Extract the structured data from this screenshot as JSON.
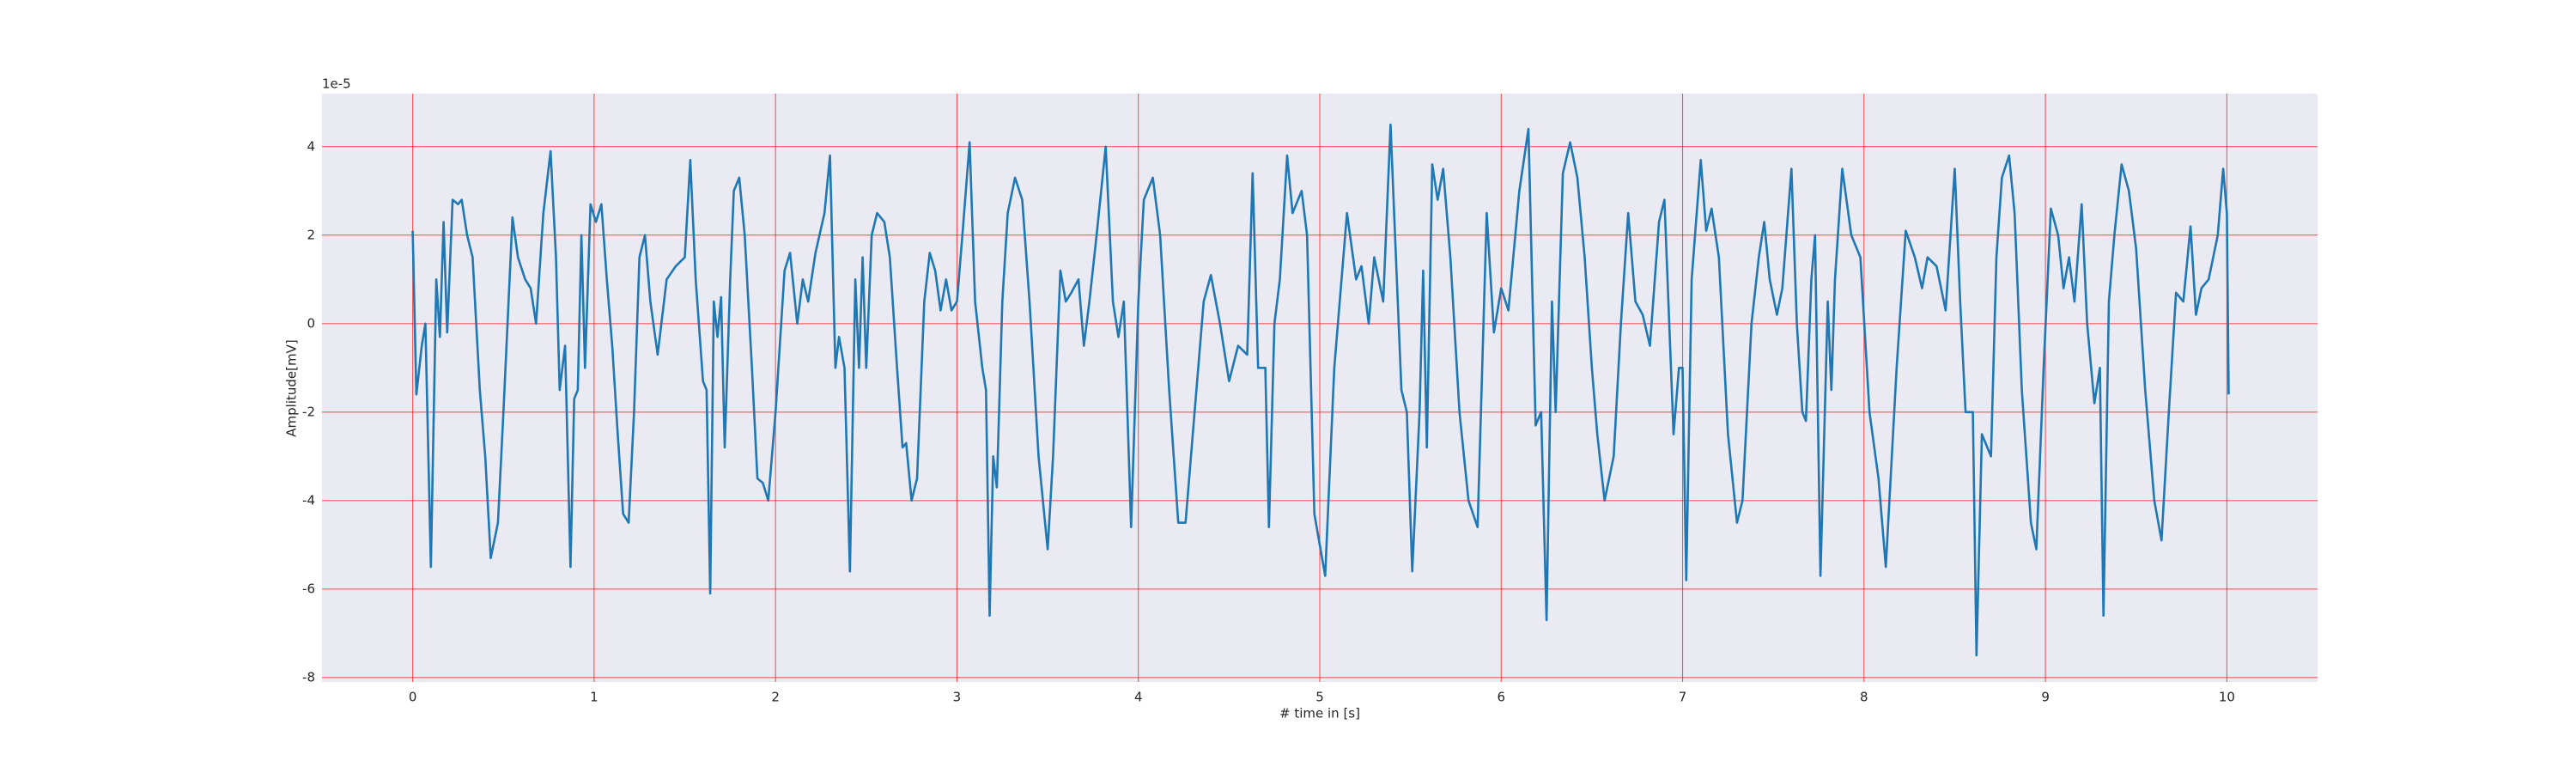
{
  "chart_data": {
    "type": "line",
    "xlabel": "# time in [s]",
    "ylabel": "Amplitude[mV]",
    "offset_text": "1e-5",
    "x": [
      0,
      0.02,
      0.05,
      0.07,
      0.1,
      0.13,
      0.15,
      0.17,
      0.19,
      0.22,
      0.25,
      0.27,
      0.3,
      0.33,
      0.37,
      0.4,
      0.43,
      0.47,
      0.5,
      0.55,
      0.58,
      0.62,
      0.65,
      0.68,
      0.72,
      0.76,
      0.79,
      0.81,
      0.84,
      0.87,
      0.89,
      0.91,
      0.93,
      0.95,
      0.98,
      1.01,
      1.04,
      1.07,
      1.1,
      1.13,
      1.16,
      1.19,
      1.22,
      1.25,
      1.28,
      1.31,
      1.35,
      1.4,
      1.45,
      1.5,
      1.53,
      1.56,
      1.6,
      1.62,
      1.64,
      1.66,
      1.68,
      1.7,
      1.72,
      1.75,
      1.77,
      1.8,
      1.83,
      1.87,
      1.9,
      1.93,
      1.96,
      2.0,
      2.05,
      2.08,
      2.12,
      2.15,
      2.18,
      2.22,
      2.27,
      2.3,
      2.33,
      2.35,
      2.38,
      2.41,
      2.44,
      2.46,
      2.48,
      2.5,
      2.53,
      2.56,
      2.6,
      2.63,
      2.67,
      2.7,
      2.72,
      2.75,
      2.78,
      2.82,
      2.85,
      2.88,
      2.91,
      2.94,
      2.97,
      3.0,
      3.03,
      3.07,
      3.1,
      3.14,
      3.16,
      3.18,
      3.2,
      3.22,
      3.25,
      3.28,
      3.32,
      3.36,
      3.4,
      3.45,
      3.5,
      3.53,
      3.57,
      3.6,
      3.63,
      3.67,
      3.7,
      3.73,
      3.77,
      3.82,
      3.86,
      3.89,
      3.92,
      3.96,
      4.0,
      4.03,
      4.08,
      4.12,
      4.17,
      4.22,
      4.26,
      4.3,
      4.36,
      4.4,
      4.45,
      4.5,
      4.55,
      4.6,
      4.63,
      4.66,
      4.7,
      4.72,
      4.75,
      4.78,
      4.82,
      4.85,
      4.9,
      4.93,
      4.97,
      5.0,
      5.03,
      5.08,
      5.15,
      5.2,
      5.23,
      5.27,
      5.3,
      5.35,
      5.39,
      5.42,
      5.45,
      5.48,
      5.51,
      5.55,
      5.57,
      5.59,
      5.62,
      5.65,
      5.68,
      5.72,
      5.77,
      5.82,
      5.87,
      5.92,
      5.96,
      6.0,
      6.04,
      6.1,
      6.15,
      6.19,
      6.22,
      6.25,
      6.28,
      6.3,
      6.34,
      6.38,
      6.42,
      6.46,
      6.5,
      6.53,
      6.57,
      6.62,
      6.66,
      6.7,
      6.74,
      6.78,
      6.82,
      6.87,
      6.9,
      6.95,
      6.98,
      7.0,
      7.02,
      7.05,
      7.1,
      7.13,
      7.16,
      7.2,
      7.25,
      7.3,
      7.33,
      7.38,
      7.42,
      7.45,
      7.48,
      7.52,
      7.55,
      7.6,
      7.63,
      7.66,
      7.68,
      7.71,
      7.73,
      7.76,
      7.8,
      7.82,
      7.84,
      7.88,
      7.93,
      7.98,
      8.03,
      8.08,
      8.12,
      8.18,
      8.23,
      8.28,
      8.32,
      8.35,
      8.4,
      8.45,
      8.5,
      8.53,
      8.56,
      8.6,
      8.62,
      8.65,
      8.7,
      8.73,
      8.76,
      8.8,
      8.83,
      8.87,
      8.92,
      8.95,
      8.99,
      9.03,
      9.07,
      9.1,
      9.13,
      9.16,
      9.2,
      9.23,
      9.27,
      9.3,
      9.32,
      9.35,
      9.38,
      9.42,
      9.46,
      9.5,
      9.55,
      9.6,
      9.64,
      9.68,
      9.72,
      9.76,
      9.8,
      9.83,
      9.86,
      9.9,
      9.95,
      9.98,
      10.0,
      10.01
    ],
    "values": [
      2.1,
      -1.6,
      -0.5,
      0.0,
      -5.5,
      1.0,
      -0.3,
      2.3,
      -0.2,
      2.8,
      2.7,
      2.8,
      2.0,
      1.5,
      -1.5,
      -3.0,
      -5.3,
      -4.5,
      -2.0,
      2.4,
      1.5,
      1.0,
      0.8,
      0,
      2.5,
      3.9,
      1.5,
      -1.5,
      -0.5,
      -5.5,
      -1.7,
      -1.5,
      2.0,
      -1.0,
      2.7,
      2.3,
      2.7,
      1.0,
      -0.5,
      -2.5,
      -4.3,
      -4.5,
      -2.0,
      1.5,
      2.0,
      0.5,
      -0.7,
      1.0,
      1.3,
      1.5,
      3.7,
      1.0,
      -1.3,
      -1.5,
      -6.1,
      0.5,
      -0.3,
      0.6,
      -2.8,
      1.0,
      3.0,
      3.3,
      2.0,
      -1.0,
      -3.5,
      -3.6,
      -4.0,
      -2.0,
      1.2,
      1.6,
      0,
      1.0,
      0.5,
      1.6,
      2.5,
      3.8,
      -1.0,
      -0.3,
      -1.0,
      -5.6,
      1.0,
      -1.0,
      1.5,
      -1.0,
      2.0,
      2.5,
      2.3,
      1.5,
      -1.0,
      -2.8,
      -2.7,
      -4.0,
      -3.5,
      0.5,
      1.6,
      1.2,
      0.3,
      1.0,
      0.3,
      0.5,
      2.0,
      4.1,
      0.5,
      -1.0,
      -1.5,
      -6.6,
      -3.0,
      -3.7,
      0.5,
      2.5,
      3.3,
      2.8,
      0.5,
      -3.0,
      -5.1,
      -3.0,
      1.2,
      0.5,
      0.7,
      1.0,
      -0.5,
      0.5,
      2.0,
      4.0,
      0.5,
      -0.3,
      0.5,
      -4.6,
      0.5,
      2.8,
      3.3,
      2.0,
      -1.5,
      -4.5,
      -4.5,
      -2.5,
      0.5,
      1.1,
      0,
      -1.3,
      -0.5,
      -0.7,
      3.4,
      -1.0,
      -1.0,
      -4.6,
      0,
      1.0,
      3.8,
      2.5,
      3.0,
      2.0,
      -4.3,
      -5.0,
      -5.7,
      -1.0,
      2.5,
      1.0,
      1.3,
      0,
      1.5,
      0.5,
      4.5,
      1.5,
      -1.5,
      -2.0,
      -5.6,
      -2.0,
      1.2,
      -2.8,
      3.6,
      2.8,
      3.5,
      1.5,
      -2.0,
      -4.0,
      -4.6,
      2.5,
      -0.2,
      0.8,
      0.3,
      3.0,
      4.4,
      -2.3,
      -2.0,
      -6.7,
      0.5,
      -2.0,
      3.4,
      4.1,
      3.3,
      1.5,
      -1.0,
      -2.5,
      -4.0,
      -3.0,
      0,
      2.5,
      0.5,
      0.2,
      -0.5,
      2.3,
      2.8,
      -2.5,
      -1.0,
      -1.0,
      -5.8,
      1.0,
      3.7,
      2.1,
      2.6,
      1.5,
      -2.5,
      -4.5,
      -4.0,
      0,
      1.5,
      2.3,
      1.0,
      0.2,
      0.8,
      3.5,
      0,
      -2.0,
      -2.2,
      1.0,
      2.0,
      -5.7,
      0.5,
      -1.5,
      1.0,
      3.5,
      2.0,
      1.5,
      -2.0,
      -3.5,
      -5.5,
      -1.0,
      2.1,
      1.5,
      0.8,
      1.5,
      1.3,
      0.3,
      3.5,
      0.5,
      -2.0,
      -2.0,
      -7.5,
      -2.5,
      -3.0,
      1.5,
      3.3,
      3.8,
      2.5,
      -1.5,
      -4.5,
      -5.1,
      -1.0,
      2.6,
      2.0,
      0.8,
      1.5,
      0.5,
      2.7,
      0,
      -1.8,
      -1.0,
      -6.6,
      0.5,
      2.0,
      3.6,
      3.0,
      1.7,
      -1.5,
      -4.0,
      -4.9,
      -2.0,
      0.7,
      0.5,
      2.2,
      0.2,
      0.8,
      1.0,
      2.0,
      3.5,
      2.5,
      -1.6
    ],
    "color": "#1f77b4",
    "xlim": [
      -0.5,
      10.5
    ],
    "xticks": [
      0,
      1,
      2,
      3,
      4,
      5,
      6,
      7,
      8,
      9,
      10
    ],
    "ylim": [
      -8.1,
      5.2
    ],
    "yticks": [
      -8,
      -6,
      -4,
      -2,
      0,
      2,
      4
    ],
    "grid": true,
    "grid_color": "#ff0000",
    "background": "#eaeaf2"
  }
}
